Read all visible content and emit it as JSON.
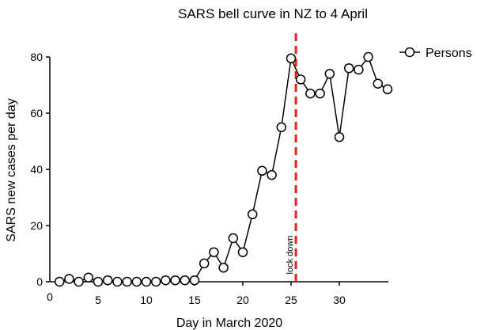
{
  "chart_data": {
    "type": "line",
    "title": "SARS bell curve in NZ to 4 April",
    "xlabel": "Day in March 2020",
    "ylabel": "SARS new cases per day",
    "xlim": [
      0,
      35
    ],
    "ylim": [
      0,
      80
    ],
    "x_ticks": [
      {
        "value": 0,
        "label": "0"
      },
      {
        "value": 5,
        "label": "5"
      },
      {
        "value": 10,
        "label": "10"
      },
      {
        "value": 15,
        "label": "15"
      },
      {
        "value": 20,
        "label": "20"
      },
      {
        "value": 25,
        "label": "25"
      },
      {
        "value": 30,
        "label": "30"
      }
    ],
    "y_ticks": [
      {
        "value": 0,
        "label": "0"
      },
      {
        "value": 20,
        "label": "20"
      },
      {
        "value": 40,
        "label": "40"
      },
      {
        "value": 60,
        "label": "60"
      },
      {
        "value": 80,
        "label": "80"
      }
    ],
    "grid": false,
    "legend_position": "top-right",
    "series": [
      {
        "name": "Persons",
        "color": "#000000",
        "marker": "open-circle",
        "x": [
          1,
          2,
          3,
          4,
          5,
          6,
          7,
          8,
          9,
          10,
          11,
          12,
          13,
          14,
          15,
          16,
          17,
          18,
          19,
          20,
          21,
          22,
          23,
          24,
          25,
          26,
          27,
          28,
          29,
          30,
          31,
          32,
          33,
          34,
          35
        ],
        "values": [
          0,
          1,
          0,
          1.5,
          0,
          0.5,
          0,
          0,
          0,
          0,
          0,
          0.5,
          0.5,
          0.5,
          0.5,
          6.5,
          10.5,
          5,
          15.5,
          10.5,
          24,
          39.5,
          38,
          55,
          79.5,
          72,
          67,
          67,
          74,
          51.5,
          76,
          75.5,
          80,
          70.5,
          68.5
        ]
      }
    ],
    "annotations": [
      {
        "type": "vline",
        "x": 25.5,
        "color": "#e8201a",
        "style": "dashed",
        "label": "lock down"
      }
    ]
  }
}
